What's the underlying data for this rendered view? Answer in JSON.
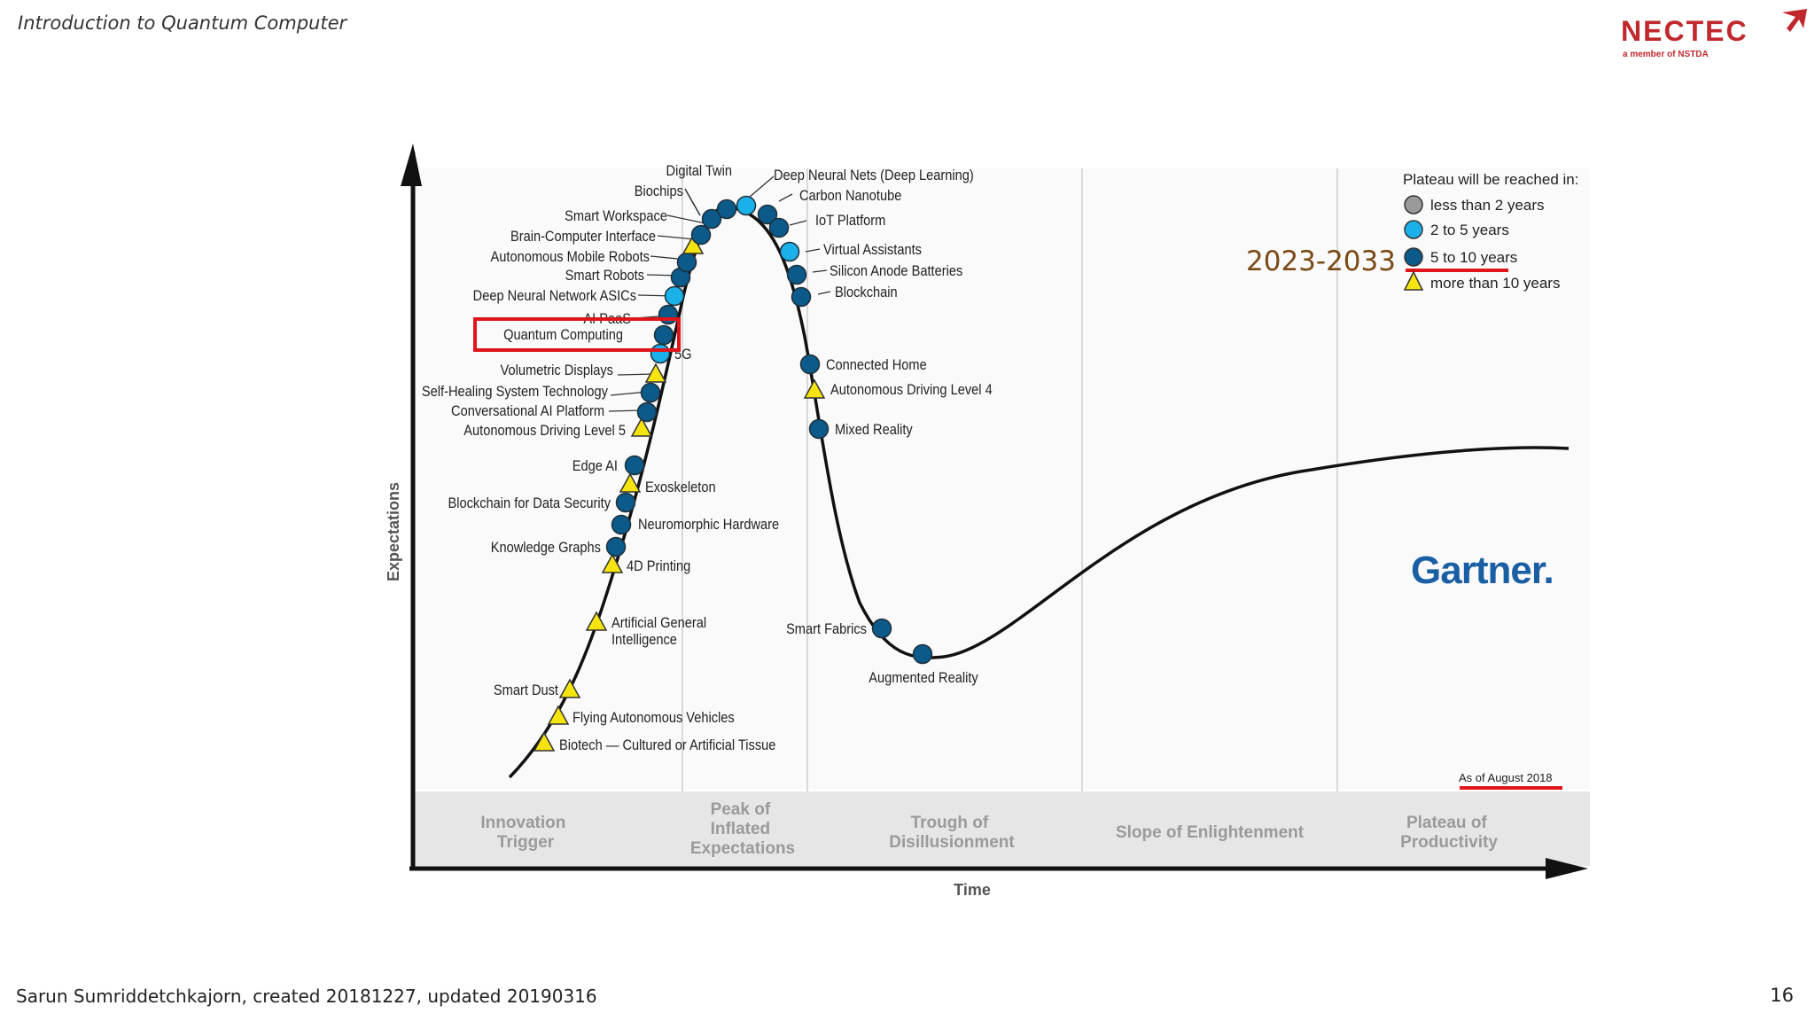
{
  "slide": {
    "title": "Introduction to Quantum Computer",
    "footer": "Sarun Sumriddetchkajorn, created 20181227, updated 20190316",
    "page_number": "16"
  },
  "logo": {
    "text": "NECTEC",
    "tagline": "a member of NSTDA",
    "color": "#c0282d"
  },
  "chart": {
    "y_axis_label": "Expectations",
    "x_axis_label": "Time",
    "phases": [
      [
        "Innovation",
        "Trigger"
      ],
      [
        "Peak of",
        "Inflated",
        "Expectations"
      ],
      [
        "Trough of",
        "Disillusionment"
      ],
      [
        "Slope of Enlightenment"
      ],
      [
        "Plateau of",
        "Productivity"
      ]
    ],
    "legend": {
      "title": "Plateau will be reached in:",
      "items": [
        {
          "label": "less than 2 years",
          "kind": "gray"
        },
        {
          "label": "2 to 5 years",
          "kind": "light"
        },
        {
          "label": "5 to 10 years",
          "kind": "dark"
        },
        {
          "label": "more than 10 years",
          "kind": "tri"
        }
      ]
    },
    "highlight_range": "2023-2033",
    "as_of": "As of August 2018",
    "brand": "Gartner.",
    "highlighted_item": "Quantum Computing",
    "colors": {
      "gray": "#9a9a9a",
      "light": "#1ab0e8",
      "dark": "#0b5a8a",
      "triangle": "#f5e410",
      "highlight_box": "#e0151b",
      "underline": "#e0151b",
      "range_text": "#7a4a16",
      "gartner": "#1a5fa3"
    },
    "technologies": [
      {
        "label": "Biotech — Cultured or Artificial Tissue",
        "kind": "tri"
      },
      {
        "label": "Flying Autonomous Vehicles",
        "kind": "tri"
      },
      {
        "label": "Smart Dust",
        "kind": "tri"
      },
      {
        "label": "Artificial General",
        "label2": "Intelligence",
        "kind": "tri"
      },
      {
        "label": "4D Printing",
        "kind": "tri"
      },
      {
        "label": "Knowledge Graphs",
        "kind": "dark"
      },
      {
        "label": "Neuromorphic Hardware",
        "kind": "dark"
      },
      {
        "label": "Blockchain for Data Security",
        "kind": "dark"
      },
      {
        "label": "Exoskeleton",
        "kind": "tri"
      },
      {
        "label": "Edge AI",
        "kind": "dark"
      },
      {
        "label": "Autonomous Driving Level 5",
        "kind": "tri"
      },
      {
        "label": "Conversational AI Platform",
        "kind": "dark"
      },
      {
        "label": "Self-Healing System Technology",
        "kind": "dark"
      },
      {
        "label": "Volumetric Displays",
        "kind": "tri"
      },
      {
        "label": "5G",
        "kind": "light"
      },
      {
        "label": "Quantum Computing",
        "kind": "dark"
      },
      {
        "label": "AI PaaS",
        "kind": "dark"
      },
      {
        "label": "Deep Neural Network ASICs",
        "kind": "light"
      },
      {
        "label": "Smart Robots",
        "kind": "dark"
      },
      {
        "label": "Autonomous Mobile Robots",
        "kind": "dark"
      },
      {
        "label": "Brain-Computer Interface",
        "kind": "tri"
      },
      {
        "label": "Smart Workspace",
        "kind": "dark"
      },
      {
        "label": "Biochips",
        "kind": "dark"
      },
      {
        "label": "Digital Twin",
        "kind": "dark"
      },
      {
        "label": "Deep Neural Nets (Deep Learning)",
        "kind": "light"
      },
      {
        "label": "Carbon Nanotube",
        "kind": "dark"
      },
      {
        "label": "IoT Platform",
        "kind": "dark"
      },
      {
        "label": "Virtual Assistants",
        "kind": "light"
      },
      {
        "label": "Silicon Anode Batteries",
        "kind": "dark"
      },
      {
        "label": "Blockchain",
        "kind": "dark"
      },
      {
        "label": "Connected Home",
        "kind": "dark"
      },
      {
        "label": "Autonomous Driving Level 4",
        "kind": "tri"
      },
      {
        "label": "Mixed Reality",
        "kind": "dark"
      },
      {
        "label": "Smart Fabrics",
        "kind": "dark"
      },
      {
        "label": "Augmented Reality",
        "kind": "dark"
      }
    ]
  }
}
